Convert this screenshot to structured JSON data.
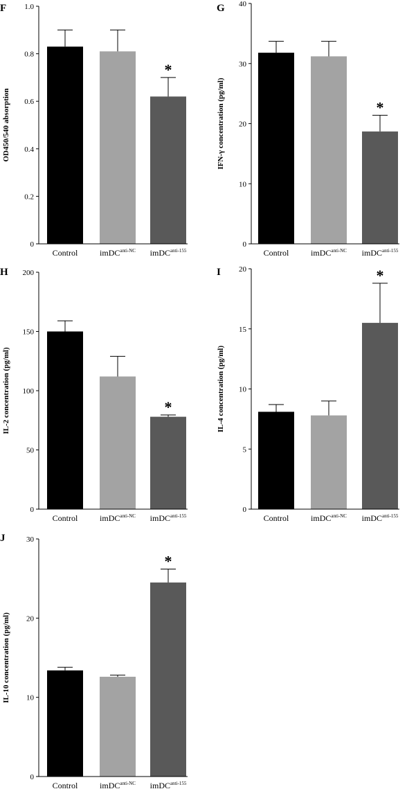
{
  "colors": {
    "control": "#000000",
    "nc": "#a3a3a3",
    "anti155": "#595959",
    "axis": "#000000"
  },
  "chart_data": [
    {
      "panel": "F",
      "type": "bar",
      "ylabel": "OD450/540 absorption",
      "categories": [
        "Control",
        "imDC",
        "imDC"
      ],
      "category_superscripts": [
        "",
        "anti-NC",
        "anti-155"
      ],
      "values": [
        0.83,
        0.81,
        0.62
      ],
      "errors": [
        0.07,
        0.09,
        0.08
      ],
      "significance": [
        "",
        "",
        "*"
      ],
      "ylim": [
        0,
        1.0
      ],
      "yticks": [
        0,
        0.2,
        0.4,
        0.6,
        0.8,
        1.0
      ],
      "ytick_labels": [
        "0",
        "0.2",
        "0.4",
        "0.6",
        "0.8",
        "1.0"
      ]
    },
    {
      "panel": "G",
      "type": "bar",
      "ylabel": "IFN-γ concentration (pg/ml)",
      "categories": [
        "Control",
        "imDC",
        "imDC"
      ],
      "category_superscripts": [
        "",
        "anti-NC",
        "anti-155"
      ],
      "values": [
        31.8,
        31.2,
        18.7
      ],
      "errors": [
        1.9,
        2.5,
        2.7
      ],
      "significance": [
        "",
        "",
        "*"
      ],
      "ylim": [
        0,
        40
      ],
      "yticks": [
        0,
        10,
        20,
        30,
        40
      ],
      "ytick_labels": [
        "0",
        "10",
        "20",
        "30",
        "40"
      ]
    },
    {
      "panel": "H",
      "type": "bar",
      "ylabel": "IL-2 concentration (pg/ml)",
      "categories": [
        "Control",
        "imDC",
        "imDC"
      ],
      "category_superscripts": [
        "",
        "anti-NC",
        "anti-155"
      ],
      "values": [
        150,
        112,
        78
      ],
      "errors": [
        9,
        17,
        1.5
      ],
      "significance": [
        "",
        "",
        "*"
      ],
      "ylim": [
        0,
        200
      ],
      "yticks": [
        0,
        50,
        100,
        150,
        200
      ],
      "ytick_labels": [
        "0",
        "50",
        "100",
        "150",
        "200"
      ]
    },
    {
      "panel": "I",
      "type": "bar",
      "ylabel": "IL-4 concentration (pg/ml)",
      "categories": [
        "Control",
        "imDC",
        "imDC"
      ],
      "category_superscripts": [
        "",
        "anti-NC",
        "anti-155"
      ],
      "values": [
        8.1,
        7.8,
        15.5
      ],
      "errors": [
        0.6,
        1.2,
        3.3
      ],
      "significance": [
        "",
        "",
        "*"
      ],
      "ylim": [
        0,
        20
      ],
      "yticks": [
        0,
        5,
        10,
        15,
        20
      ],
      "ytick_labels": [
        "0",
        "5",
        "10",
        "15",
        "20"
      ]
    },
    {
      "panel": "J",
      "type": "bar",
      "ylabel": "IL-10 concentration (pg/ml)",
      "categories": [
        "Control",
        "imDC",
        "imDC"
      ],
      "category_superscripts": [
        "",
        "anti-NC",
        "anti-155"
      ],
      "values": [
        13.4,
        12.6,
        24.5
      ],
      "errors": [
        0.4,
        0.2,
        1.7
      ],
      "significance": [
        "",
        "",
        "*"
      ],
      "ylim": [
        0,
        30
      ],
      "yticks": [
        0,
        10,
        20,
        30
      ],
      "ytick_labels": [
        "0",
        "10",
        "20",
        "30"
      ]
    }
  ]
}
